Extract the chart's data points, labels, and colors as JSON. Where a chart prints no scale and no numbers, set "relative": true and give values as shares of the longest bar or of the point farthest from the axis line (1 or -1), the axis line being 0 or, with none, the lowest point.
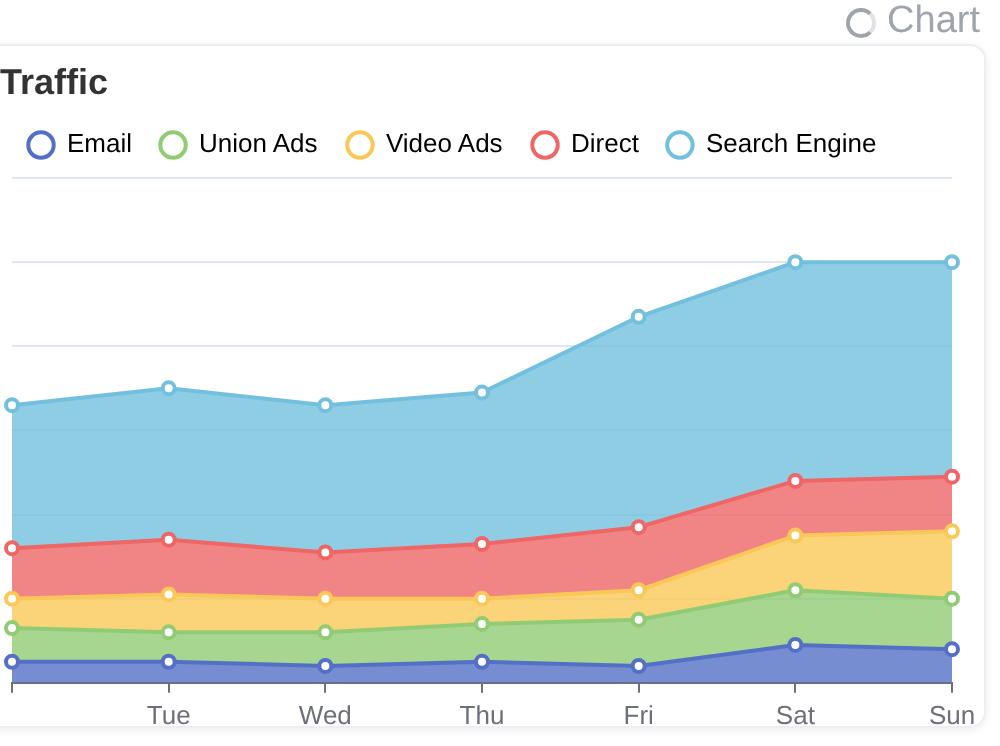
{
  "chart_data": {
    "type": "area",
    "title": "Traffic",
    "annotations": [
      "Chart"
    ],
    "relative": true,
    "stacked": true,
    "grid": "y",
    "legend": "top",
    "tick_labels": "x",
    "marker": "circle",
    "line_style": "solid",
    "categories": [
      null,
      "Tue",
      "Wed",
      "Thu",
      "Fri",
      "Sat",
      "Sun"
    ],
    "series": [
      {
        "name": "Email",
        "color": "#5470c6",
        "values": [
          0.05,
          0.05,
          0.04,
          0.05,
          0.04,
          0.09,
          0.08
        ]
      },
      {
        "name": "Union Ads",
        "color": "#91cc75",
        "values": [
          0.08,
          0.07,
          0.08,
          0.09,
          0.11,
          0.13,
          0.12
        ]
      },
      {
        "name": "Video Ads",
        "color": "#fac858",
        "values": [
          0.07,
          0.09,
          0.08,
          0.06,
          0.07,
          0.13,
          0.16
        ]
      },
      {
        "name": "Direct",
        "color": "#ee6666",
        "values": [
          0.12,
          0.13,
          0.11,
          0.13,
          0.15,
          0.13,
          0.13
        ]
      },
      {
        "name": "Search Engine",
        "color": "#73c0de",
        "values": [
          0.34,
          0.36,
          0.35,
          0.36,
          0.5,
          0.52,
          0.51
        ]
      }
    ]
  }
}
